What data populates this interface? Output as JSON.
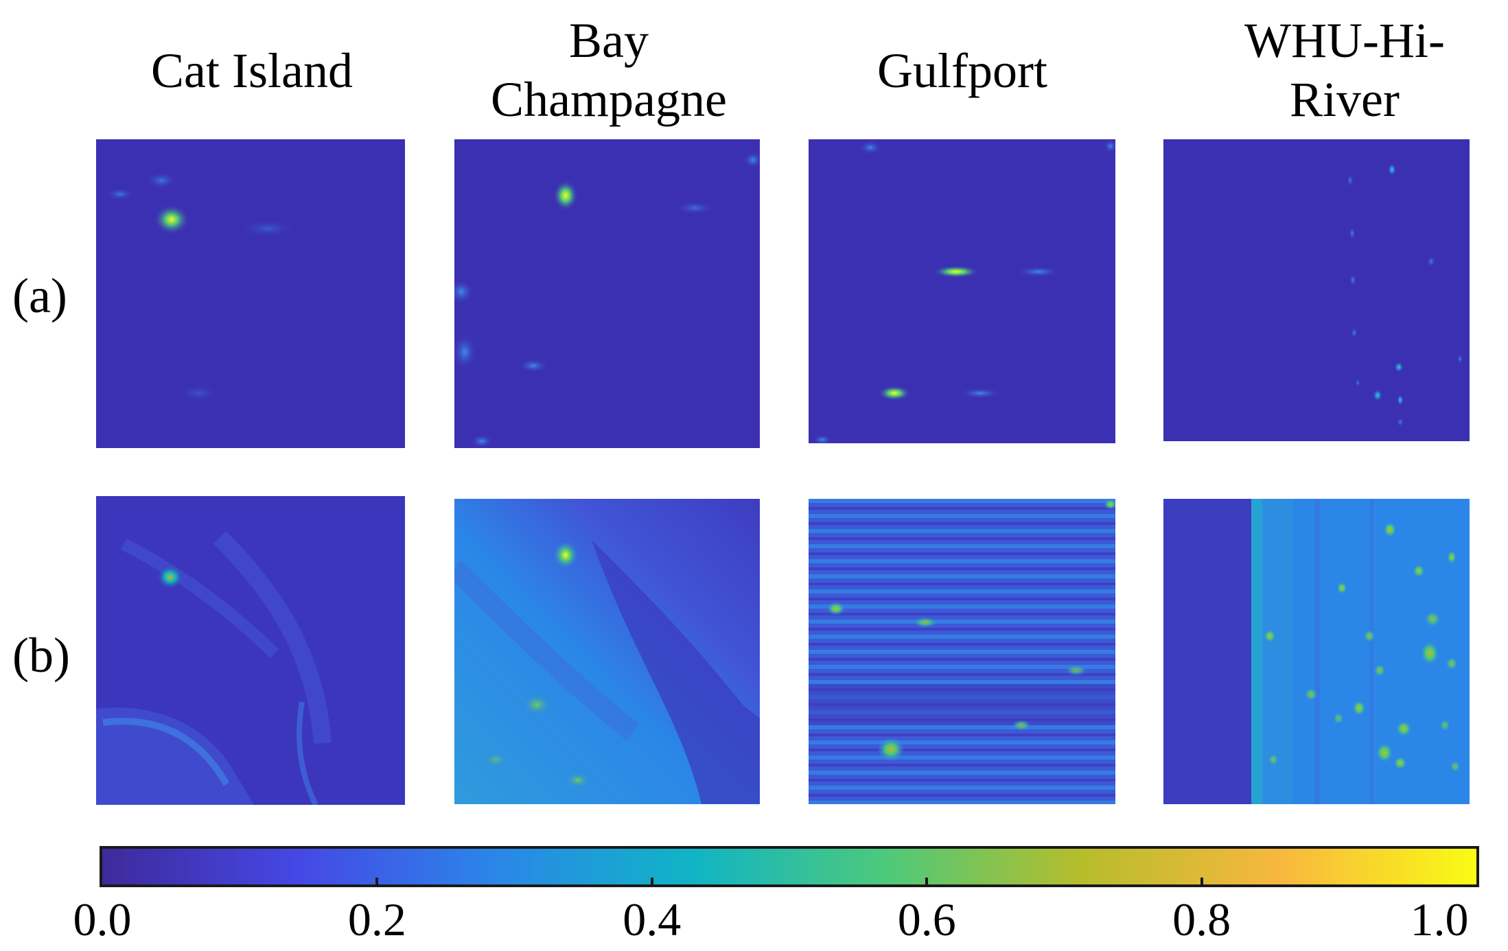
{
  "columns": [
    {
      "title": "Cat Island"
    },
    {
      "title": "Bay\nChampagne"
    },
    {
      "title": "Gulfport"
    },
    {
      "title": "WHU-Hi-\nRiver"
    }
  ],
  "rows": [
    {
      "label": "(a)"
    },
    {
      "label": "(b)"
    }
  ],
  "colorbar": {
    "min": 0.0,
    "max": 1.0,
    "ticks": [
      "0.0",
      "0.2",
      "0.4",
      "0.6",
      "0.8",
      "1.0"
    ],
    "colormap": "parula",
    "stops": [
      "#3e2a9b",
      "#4548e6",
      "#2b86e8",
      "#10b4c6",
      "#4ec97a",
      "#b7bd2a",
      "#f8b73f",
      "#f9fb15"
    ]
  }
}
